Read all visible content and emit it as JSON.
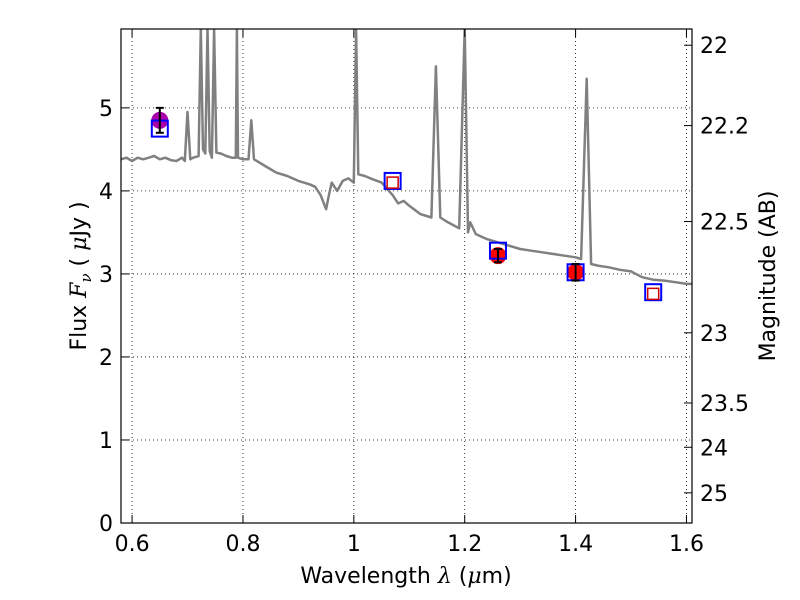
{
  "chart_data": {
    "type": "scatter",
    "xlabel_parts": [
      "Wavelength  ",
      "λ",
      " (",
      "μ",
      "m)"
    ],
    "ylabel_parts": [
      "Flux  ",
      "F",
      "ν",
      "  ( ",
      "μ",
      "Jy )"
    ],
    "y2label": "Magnitude (AB)",
    "xlim": [
      0.58,
      1.61
    ],
    "ylim": [
      0,
      5.95
    ],
    "grid": true,
    "x_ticks": [
      {
        "value": 0.6,
        "label": "0.6"
      },
      {
        "value": 0.8,
        "label": "0.8"
      },
      {
        "value": 1.0,
        "label": "1"
      },
      {
        "value": 1.2,
        "label": "1.2"
      },
      {
        "value": 1.4,
        "label": "1.4"
      },
      {
        "value": 1.6,
        "label": "1.6"
      }
    ],
    "y_ticks": [
      {
        "value": 0,
        "label": "0"
      },
      {
        "value": 1,
        "label": "1"
      },
      {
        "value": 2,
        "label": "2"
      },
      {
        "value": 3,
        "label": "3"
      },
      {
        "value": 4,
        "label": "4"
      },
      {
        "value": 5,
        "label": "5"
      }
    ],
    "y2_ticks": [
      {
        "value": 22,
        "label": "22"
      },
      {
        "value": 22.2,
        "label": "22.2"
      },
      {
        "value": 22.5,
        "label": "22.5"
      },
      {
        "value": 23,
        "label": "23"
      },
      {
        "value": 23.5,
        "label": "23.5"
      },
      {
        "value": 24,
        "label": "24"
      },
      {
        "value": 25,
        "label": "25"
      }
    ],
    "ab_zero_point_ujy": 3631000000,
    "model_spectrum": {
      "color": "#808080",
      "points": [
        [
          0.58,
          4.38
        ],
        [
          0.59,
          4.4
        ],
        [
          0.6,
          4.36
        ],
        [
          0.61,
          4.4
        ],
        [
          0.62,
          4.38
        ],
        [
          0.63,
          4.4
        ],
        [
          0.64,
          4.42
        ],
        [
          0.65,
          4.38
        ],
        [
          0.66,
          4.4
        ],
        [
          0.67,
          4.37
        ],
        [
          0.68,
          4.36
        ],
        [
          0.69,
          4.4
        ],
        [
          0.695,
          4.36
        ],
        [
          0.7,
          4.95
        ],
        [
          0.705,
          4.38
        ],
        [
          0.71,
          4.4
        ],
        [
          0.72,
          4.42
        ],
        [
          0.724,
          5.95
        ],
        [
          0.728,
          4.5
        ],
        [
          0.732,
          4.45
        ],
        [
          0.736,
          5.95
        ],
        [
          0.74,
          4.48
        ],
        [
          0.744,
          4.4
        ],
        [
          0.748,
          5.95
        ],
        [
          0.752,
          4.46
        ],
        [
          0.76,
          4.45
        ],
        [
          0.77,
          4.42
        ],
        [
          0.78,
          4.4
        ],
        [
          0.787,
          4.4
        ],
        [
          0.789,
          5.95
        ],
        [
          0.791,
          4.4
        ],
        [
          0.8,
          4.38
        ],
        [
          0.81,
          4.38
        ],
        [
          0.815,
          4.85
        ],
        [
          0.82,
          4.38
        ],
        [
          0.84,
          4.3
        ],
        [
          0.86,
          4.22
        ],
        [
          0.88,
          4.18
        ],
        [
          0.9,
          4.12
        ],
        [
          0.92,
          4.08
        ],
        [
          0.93,
          4.05
        ],
        [
          0.94,
          3.95
        ],
        [
          0.95,
          3.78
        ],
        [
          0.955,
          3.95
        ],
        [
          0.96,
          4.1
        ],
        [
          0.97,
          4.0
        ],
        [
          0.98,
          4.12
        ],
        [
          0.99,
          4.15
        ],
        [
          1.0,
          4.1
        ],
        [
          1.004,
          5.95
        ],
        [
          1.008,
          4.2
        ],
        [
          1.02,
          4.18
        ],
        [
          1.03,
          4.15
        ],
        [
          1.05,
          4.1
        ],
        [
          1.07,
          3.95
        ],
        [
          1.08,
          3.85
        ],
        [
          1.09,
          3.88
        ],
        [
          1.1,
          3.82
        ],
        [
          1.12,
          3.72
        ],
        [
          1.14,
          3.68
        ],
        [
          1.148,
          5.5
        ],
        [
          1.156,
          3.68
        ],
        [
          1.17,
          3.62
        ],
        [
          1.19,
          3.55
        ],
        [
          1.2,
          5.95
        ],
        [
          1.206,
          3.5
        ],
        [
          1.21,
          3.62
        ],
        [
          1.22,
          3.48
        ],
        [
          1.24,
          3.42
        ],
        [
          1.26,
          3.38
        ],
        [
          1.28,
          3.34
        ],
        [
          1.3,
          3.3
        ],
        [
          1.32,
          3.28
        ],
        [
          1.34,
          3.26
        ],
        [
          1.36,
          3.24
        ],
        [
          1.38,
          3.22
        ],
        [
          1.4,
          3.2
        ],
        [
          1.41,
          3.18
        ],
        [
          1.42,
          5.35
        ],
        [
          1.428,
          3.12
        ],
        [
          1.44,
          3.1
        ],
        [
          1.46,
          3.08
        ],
        [
          1.48,
          3.05
        ],
        [
          1.5,
          3.03
        ],
        [
          1.52,
          2.96
        ],
        [
          1.54,
          2.93
        ],
        [
          1.56,
          2.92
        ],
        [
          1.58,
          2.9
        ],
        [
          1.6,
          2.88
        ],
        [
          1.61,
          2.88
        ]
      ]
    },
    "model_photometry_blue_squares": {
      "color": "#0000ff",
      "points": [
        [
          0.65,
          4.75
        ],
        [
          1.07,
          4.12
        ],
        [
          1.26,
          3.28
        ],
        [
          1.4,
          3.02
        ],
        [
          1.54,
          2.78
        ]
      ]
    },
    "synthetic_photometry_red_squares": {
      "color": "#d00000",
      "points": [
        [
          1.07,
          4.1
        ],
        [
          1.54,
          2.76
        ]
      ]
    },
    "observed_red": {
      "color": "#ff0000",
      "points": [
        {
          "x": 1.26,
          "y": 3.22,
          "err": 0.08
        },
        {
          "x": 1.4,
          "y": 3.02,
          "err": 0.1
        }
      ]
    },
    "observed_purple": {
      "color": "#aa00aa",
      "points": [
        {
          "x": 0.65,
          "y": 4.85,
          "err": 0.15
        }
      ]
    }
  }
}
